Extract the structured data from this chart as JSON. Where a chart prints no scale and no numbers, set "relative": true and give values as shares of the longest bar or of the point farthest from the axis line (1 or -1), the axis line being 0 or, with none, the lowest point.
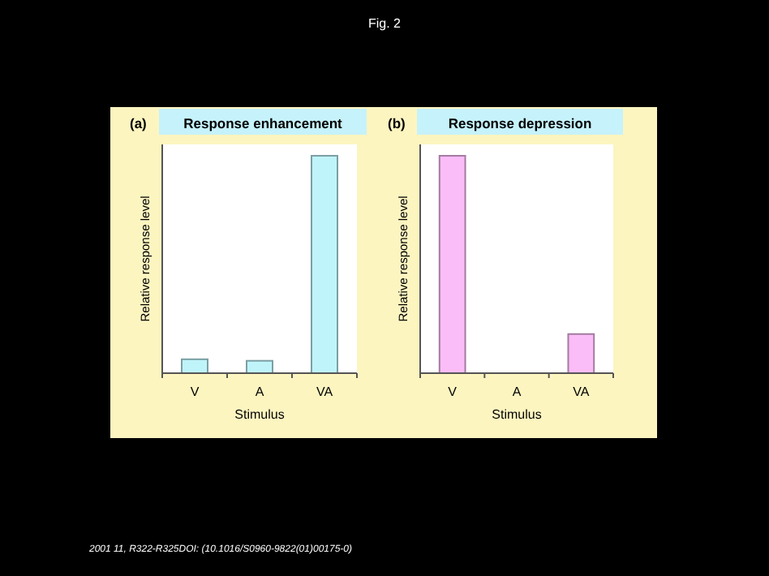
{
  "chart_data": [
    {
      "type": "bar",
      "title": "Response enhancement",
      "xlabel": "Stimulus",
      "ylabel": "Relative response level",
      "categories": [
        "V",
        "A",
        "VA"
      ],
      "values": [
        0.064,
        0.057,
        1
      ],
      "color": "#bff4fb",
      "relative": true,
      "annotations": [
        "(a)",
        "Fig. 2"
      ]
    },
    {
      "type": "bar",
      "title": "Response depression",
      "xlabel": "Stimulus",
      "ylabel": "Relative response level",
      "categories": [
        "V",
        "A",
        "VA"
      ],
      "values": [
        1,
        0,
        0.18
      ],
      "color": "#fbbdf7",
      "relative": true,
      "annotations": [
        "(b)",
        "2001 11, R322-R325DOI: (10.1016/S0960-9822(01)00175-0)"
      ]
    }
  ]
}
